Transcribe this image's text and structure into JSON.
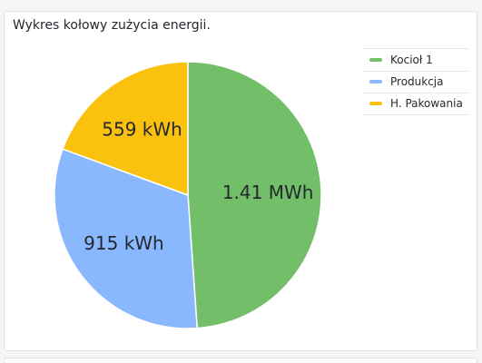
{
  "chart_data": {
    "type": "pie",
    "title": "Wykres kołowy zużycia energii.",
    "categories": [
      "Kocioł 1",
      "Produkcja",
      "H. Pakowania"
    ],
    "values": [
      1410,
      915,
      559
    ],
    "value_labels": [
      "1.41 MWh",
      "915 kWh",
      "559 kWh"
    ],
    "colors": [
      "#73bf69",
      "#8ab8ff",
      "#fac20f"
    ],
    "legend": "right"
  }
}
